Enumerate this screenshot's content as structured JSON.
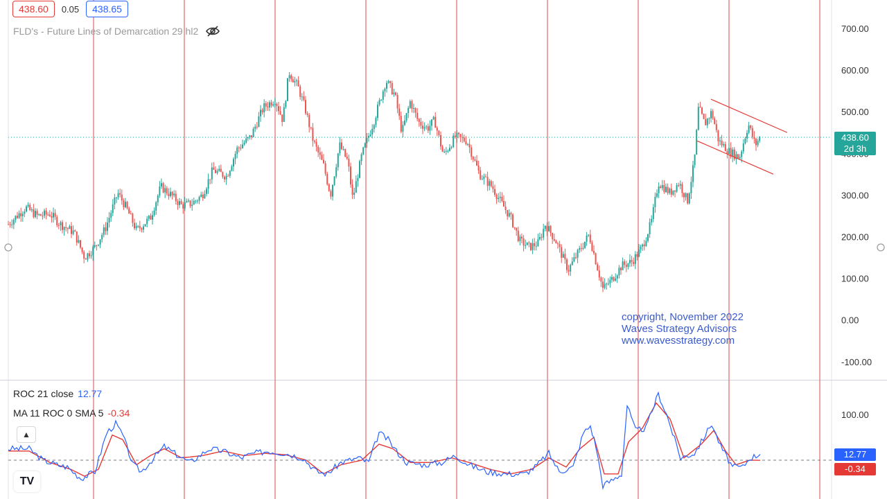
{
  "header": {
    "bid": "438.60",
    "spread": "0.05",
    "ask": "438.65",
    "indicator_title": "FLD's - Future Lines of Demarcation 29 hl2"
  },
  "price_tag": {
    "value": "438.60",
    "countdown": "2d 3h"
  },
  "roc_legend": {
    "roc_label": "ROC 21 close",
    "roc_value": "12.77",
    "ma_label": "MA 11 ROC 0 SMA 5",
    "ma_value": "-0.34"
  },
  "roc_tags": {
    "roc": "12.77",
    "ma": "-0.34"
  },
  "watermark": {
    "line1": "copyright, November 2022",
    "line2": "Waves Strategy Advisors",
    "line3": "www.wavesstrategy.com"
  },
  "colors": {
    "up": "#26a69a",
    "down": "#ef5350",
    "cycle_line": "#e57373",
    "roc_line": "#2962ff",
    "ma_line": "#e53935",
    "last_price": "#26a69a"
  },
  "chart_data": [
    {
      "type": "candlestick",
      "ylim": [
        -130,
        750
      ],
      "yticks": [
        "700.00",
        "600.00",
        "500.00",
        "400.00",
        "300.00",
        "200.00",
        "100.00",
        "0.00",
        "-100.00"
      ],
      "ytick_values": [
        700,
        600,
        500,
        400,
        300,
        200,
        100,
        0,
        -100
      ],
      "last_price": 438.6,
      "path": [
        [
          0,
          230
        ],
        [
          25,
          270
        ],
        [
          42,
          250
        ],
        [
          60,
          255
        ],
        [
          75,
          230
        ],
        [
          95,
          210
        ],
        [
          110,
          150
        ],
        [
          125,
          175
        ],
        [
          140,
          220
        ],
        [
          158,
          305
        ],
        [
          170,
          270
        ],
        [
          185,
          215
        ],
        [
          205,
          245
        ],
        [
          220,
          320
        ],
        [
          235,
          300
        ],
        [
          250,
          275
        ],
        [
          265,
          280
        ],
        [
          280,
          300
        ],
        [
          295,
          360
        ],
        [
          315,
          345
        ],
        [
          330,
          410
        ],
        [
          350,
          440
        ],
        [
          368,
          510
        ],
        [
          385,
          530
        ],
        [
          396,
          480
        ],
        [
          405,
          595
        ],
        [
          418,
          560
        ],
        [
          428,
          510
        ],
        [
          440,
          430
        ],
        [
          455,
          370
        ],
        [
          465,
          300
        ],
        [
          478,
          420
        ],
        [
          490,
          380
        ],
        [
          497,
          290
        ],
        [
          510,
          395
        ],
        [
          528,
          480
        ],
        [
          545,
          575
        ],
        [
          558,
          540
        ],
        [
          568,
          450
        ],
        [
          580,
          525
        ],
        [
          592,
          475
        ],
        [
          605,
          460
        ],
        [
          615,
          480
        ],
        [
          628,
          395
        ],
        [
          645,
          440
        ],
        [
          662,
          430
        ],
        [
          680,
          350
        ],
        [
          698,
          320
        ],
        [
          712,
          280
        ],
        [
          725,
          245
        ],
        [
          738,
          190
        ],
        [
          752,
          175
        ],
        [
          765,
          185
        ],
        [
          775,
          230
        ],
        [
          790,
          190
        ],
        [
          808,
          120
        ],
        [
          820,
          155
        ],
        [
          838,
          205
        ],
        [
          848,
          140
        ],
        [
          858,
          75
        ],
        [
          870,
          95
        ],
        [
          885,
          130
        ],
        [
          900,
          140
        ],
        [
          915,
          175
        ],
        [
          928,
          235
        ],
        [
          938,
          330
        ],
        [
          955,
          305
        ],
        [
          968,
          330
        ],
        [
          980,
          285
        ],
        [
          990,
          380
        ],
        [
          996,
          510
        ],
        [
          1005,
          470
        ],
        [
          1015,
          500
        ],
        [
          1025,
          430
        ],
        [
          1040,
          405
        ],
        [
          1055,
          390
        ],
        [
          1068,
          470
        ],
        [
          1078,
          420
        ],
        [
          1085,
          440
        ]
      ],
      "cycle_lines_x_bar": [
        123,
        254,
        385,
        516,
        647,
        778,
        909,
        1040,
        1171
      ],
      "channel": {
        "upper": [
          [
            1014,
            530
          ],
          [
            1124,
            450
          ]
        ],
        "lower": [
          [
            994,
            430
          ],
          [
            1104,
            350
          ]
        ]
      }
    },
    {
      "type": "line",
      "name": "ROC",
      "ylim": [
        -60,
        140
      ],
      "yticks": [
        "100.00"
      ],
      "ytick_values": [
        100
      ],
      "series": [
        {
          "name": "ROC 21 close",
          "points": [
            [
              0,
              25
            ],
            [
              30,
              25
            ],
            [
              50,
              0
            ],
            [
              70,
              -10
            ],
            [
              85,
              -15
            ],
            [
              105,
              -40
            ],
            [
              125,
              -25
            ],
            [
              142,
              60
            ],
            [
              155,
              80
            ],
            [
              165,
              55
            ],
            [
              180,
              -10
            ],
            [
              192,
              -25
            ],
            [
              210,
              5
            ],
            [
              225,
              30
            ],
            [
              240,
              15
            ],
            [
              262,
              -5
            ],
            [
              290,
              25
            ],
            [
              310,
              20
            ],
            [
              335,
              5
            ],
            [
              355,
              15
            ],
            [
              375,
              20
            ],
            [
              400,
              15
            ],
            [
              425,
              5
            ],
            [
              445,
              -25
            ],
            [
              460,
              -30
            ],
            [
              480,
              -5
            ],
            [
              505,
              5
            ],
            [
              520,
              -5
            ],
            [
              535,
              60
            ],
            [
              548,
              45
            ],
            [
              560,
              20
            ],
            [
              575,
              -5
            ],
            [
              600,
              -10
            ],
            [
              625,
              -5
            ],
            [
              645,
              10
            ],
            [
              665,
              -10
            ],
            [
              690,
              -25
            ],
            [
              720,
              -30
            ],
            [
              745,
              -30
            ],
            [
              760,
              -15
            ],
            [
              780,
              15
            ],
            [
              795,
              -25
            ],
            [
              815,
              -15
            ],
            [
              830,
              60
            ],
            [
              840,
              75
            ],
            [
              848,
              30
            ],
            [
              858,
              -55
            ],
            [
              870,
              -45
            ],
            [
              885,
              -30
            ],
            [
              893,
              120
            ],
            [
              905,
              65
            ],
            [
              920,
              70
            ],
            [
              938,
              145
            ],
            [
              950,
              100
            ],
            [
              970,
              5
            ],
            [
              990,
              15
            ],
            [
              1000,
              40
            ],
            [
              1015,
              80
            ],
            [
              1028,
              30
            ],
            [
              1045,
              -15
            ],
            [
              1060,
              -15
            ],
            [
              1070,
              5
            ],
            [
              1085,
              12.77
            ]
          ]
        },
        {
          "name": "MA 11 ROC 0 SMA 5",
          "points": [
            [
              0,
              20
            ],
            [
              30,
              20
            ],
            [
              60,
              -5
            ],
            [
              90,
              -20
            ],
            [
              110,
              -35
            ],
            [
              130,
              -20
            ],
            [
              150,
              55
            ],
            [
              165,
              45
            ],
            [
              185,
              -10
            ],
            [
              205,
              10
            ],
            [
              225,
              25
            ],
            [
              250,
              5
            ],
            [
              280,
              10
            ],
            [
              310,
              20
            ],
            [
              340,
              10
            ],
            [
              370,
              15
            ],
            [
              400,
              12
            ],
            [
              430,
              0
            ],
            [
              455,
              -30
            ],
            [
              480,
              -10
            ],
            [
              510,
              0
            ],
            [
              535,
              35
            ],
            [
              555,
              25
            ],
            [
              580,
              -5
            ],
            [
              610,
              -5
            ],
            [
              640,
              5
            ],
            [
              665,
              -5
            ],
            [
              695,
              -20
            ],
            [
              725,
              -30
            ],
            [
              755,
              -20
            ],
            [
              780,
              5
            ],
            [
              805,
              -15
            ],
            [
              825,
              25
            ],
            [
              845,
              50
            ],
            [
              860,
              -30
            ],
            [
              880,
              -30
            ],
            [
              895,
              40
            ],
            [
              915,
              70
            ],
            [
              935,
              125
            ],
            [
              955,
              90
            ],
            [
              975,
              5
            ],
            [
              1000,
              35
            ],
            [
              1018,
              65
            ],
            [
              1035,
              20
            ],
            [
              1050,
              -10
            ],
            [
              1070,
              0
            ],
            [
              1085,
              -0.34
            ]
          ]
        }
      ],
      "zero_line": 0
    }
  ]
}
